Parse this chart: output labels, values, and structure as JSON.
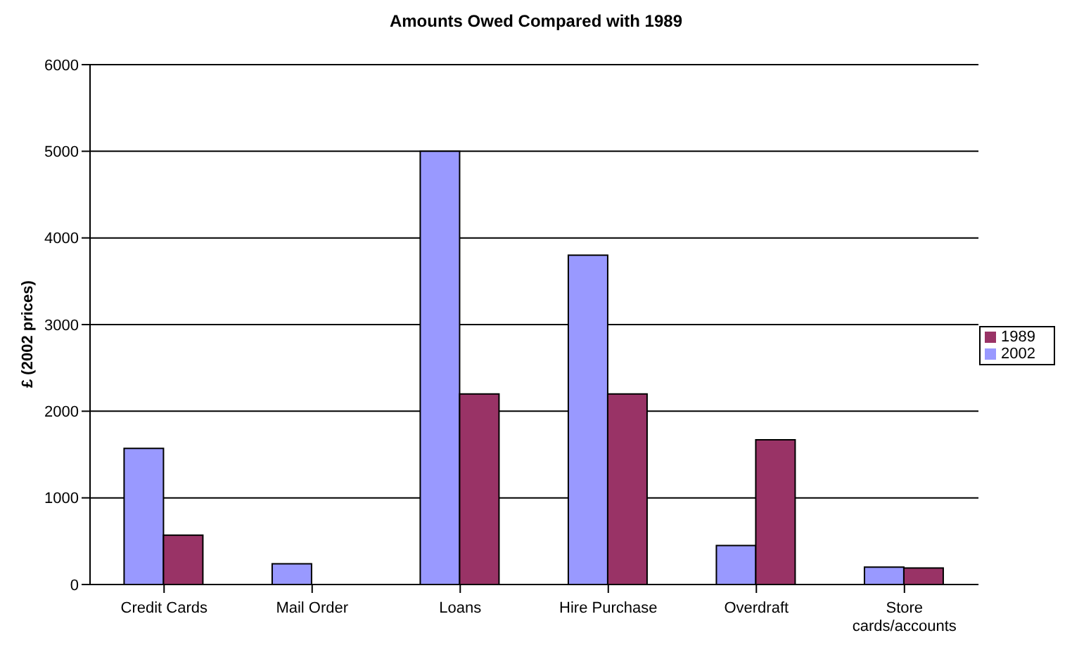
{
  "chart_data": {
    "type": "bar",
    "title": "Amounts Owed Compared with 1989",
    "ylabel": "£ (2002 prices)",
    "categories": [
      "Credit Cards",
      "Mail Order",
      "Loans",
      "Hire Purchase",
      "Overdraft",
      "Store cards/accounts"
    ],
    "series": [
      {
        "name": "2002",
        "color": "#9999ff",
        "values": [
          1570,
          240,
          5000,
          3800,
          450,
          200
        ]
      },
      {
        "name": "1989",
        "color": "#993366",
        "values": [
          570,
          0,
          2200,
          2200,
          1670,
          190
        ]
      }
    ],
    "ylim": [
      0,
      6000
    ],
    "yticks": [
      0,
      1000,
      2000,
      3000,
      4000,
      5000,
      6000
    ],
    "grid": "y",
    "legend": "right"
  }
}
